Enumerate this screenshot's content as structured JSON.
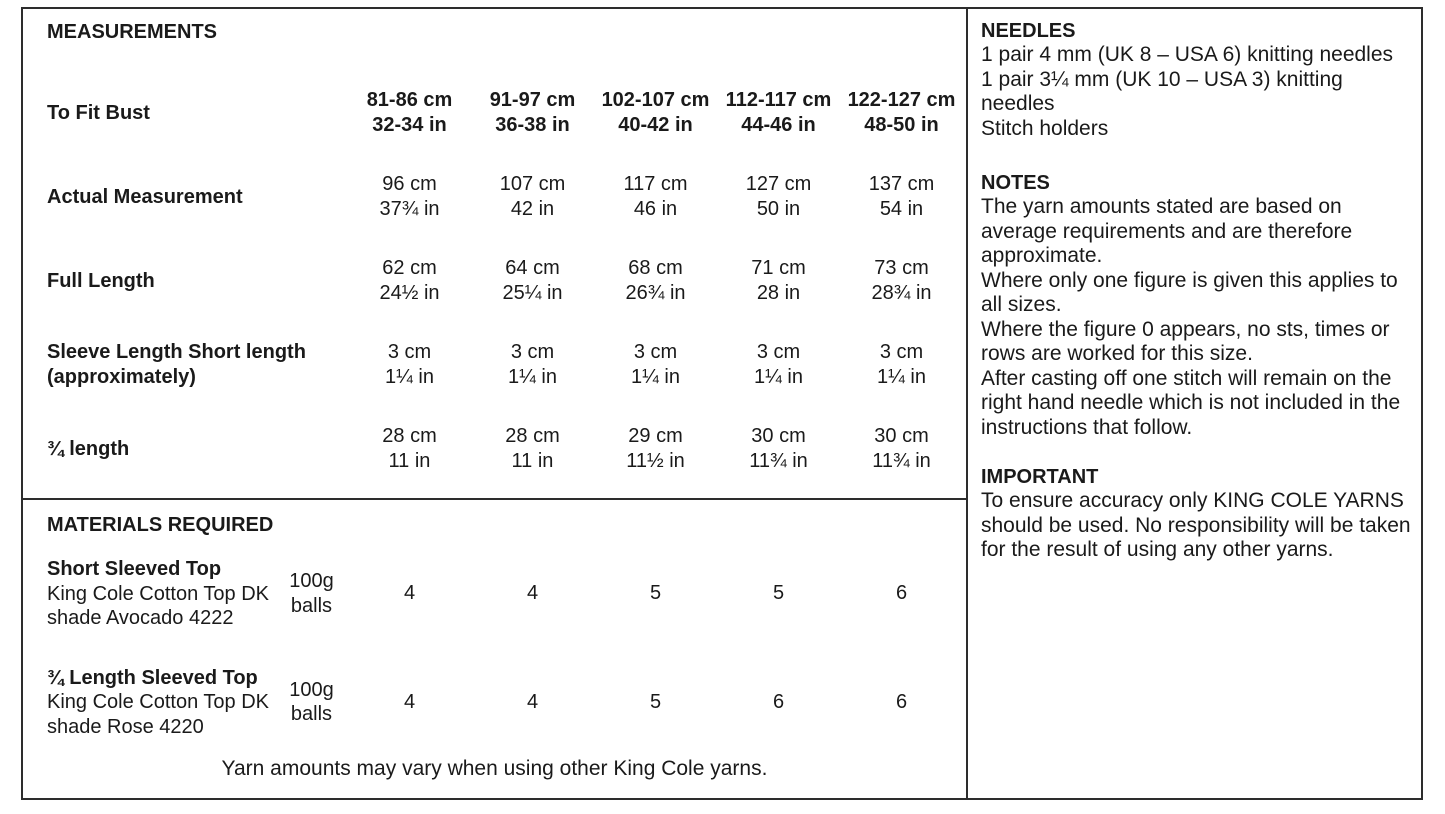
{
  "colors": {
    "text": "#1a1a1a",
    "border": "#2d2d2d",
    "background": "#ffffff"
  },
  "measurements": {
    "title": "MEASUREMENTS",
    "fit_label": "To Fit Bust",
    "sizes": [
      {
        "cm": "81-86 cm",
        "inch": "32-34 in"
      },
      {
        "cm": "91-97 cm",
        "inch": "36-38 in"
      },
      {
        "cm": "102-107 cm",
        "inch": "40-42 in"
      },
      {
        "cm": "112-117 cm",
        "inch": "44-46 in"
      },
      {
        "cm": "122-127 cm",
        "inch": "48-50 in"
      }
    ],
    "rows": [
      {
        "label": "Actual Measurement",
        "label2": "",
        "values": [
          {
            "cm": "96 cm",
            "inch": "37¾ in"
          },
          {
            "cm": "107 cm",
            "inch": "42 in"
          },
          {
            "cm": "117 cm",
            "inch": "46 in"
          },
          {
            "cm": "127 cm",
            "inch": "50 in"
          },
          {
            "cm": "137 cm",
            "inch": "54 in"
          }
        ]
      },
      {
        "label": "Full Length",
        "label2": "",
        "values": [
          {
            "cm": "62 cm",
            "inch": "24½ in"
          },
          {
            "cm": "64 cm",
            "inch": "25¼ in"
          },
          {
            "cm": "68 cm",
            "inch": "26¾ in"
          },
          {
            "cm": "71 cm",
            "inch": "28 in"
          },
          {
            "cm": "73 cm",
            "inch": "28¾ in"
          }
        ]
      },
      {
        "label": "Sleeve Length Short length",
        "label2": "(approximately)",
        "values": [
          {
            "cm": "3 cm",
            "inch": "1¼ in"
          },
          {
            "cm": "3 cm",
            "inch": "1¼ in"
          },
          {
            "cm": "3 cm",
            "inch": "1¼ in"
          },
          {
            "cm": "3 cm",
            "inch": "1¼ in"
          },
          {
            "cm": "3 cm",
            "inch": "1¼ in"
          }
        ]
      },
      {
        "label": "¾ length",
        "label2": "",
        "values": [
          {
            "cm": "28 cm",
            "inch": "11 in"
          },
          {
            "cm": "28 cm",
            "inch": "11 in"
          },
          {
            "cm": "29 cm",
            "inch": "11½ in"
          },
          {
            "cm": "30 cm",
            "inch": "11¾ in"
          },
          {
            "cm": "30 cm",
            "inch": "11¾ in"
          }
        ]
      }
    ]
  },
  "materials": {
    "title": "MATERIALS REQUIRED",
    "items": [
      {
        "name": "Short Sleeved Top",
        "line2": "King Cole Cotton Top DK",
        "line3": "shade Avocado 4222",
        "unit_line1": "100g",
        "unit_line2": "balls",
        "quantities": [
          "4",
          "4",
          "5",
          "5",
          "6"
        ]
      },
      {
        "name": "¾ Length Sleeved Top",
        "line2": "King Cole Cotton Top DK",
        "line3": "shade Rose 4220",
        "unit_line1": "100g",
        "unit_line2": "balls",
        "quantities": [
          "4",
          "4",
          "5",
          "6",
          "6"
        ]
      }
    ],
    "footnote": "Yarn amounts may vary when using other King Cole yarns."
  },
  "sidebar": {
    "needles_title": "NEEDLES",
    "needles_lines": [
      "1 pair 4 mm (UK 8 – USA 6) knitting needles",
      "1 pair 3¼ mm (UK 10 – USA 3) knitting needles",
      "Stitch holders"
    ],
    "notes_title": "NOTES",
    "notes_lines": [
      "The yarn amounts stated are based on average requirements and are therefore approximate.",
      "Where only one figure is given this applies to all sizes.",
      "Where the figure 0 appears, no sts, times or rows are worked for this size.",
      "After casting off one stitch will remain on the right hand needle which is not included in the instructions that follow."
    ],
    "important_title": "IMPORTANT",
    "important_text": "To ensure accuracy only KING COLE YARNS should be used. No responsibility will be taken for the result of using any other yarns."
  }
}
